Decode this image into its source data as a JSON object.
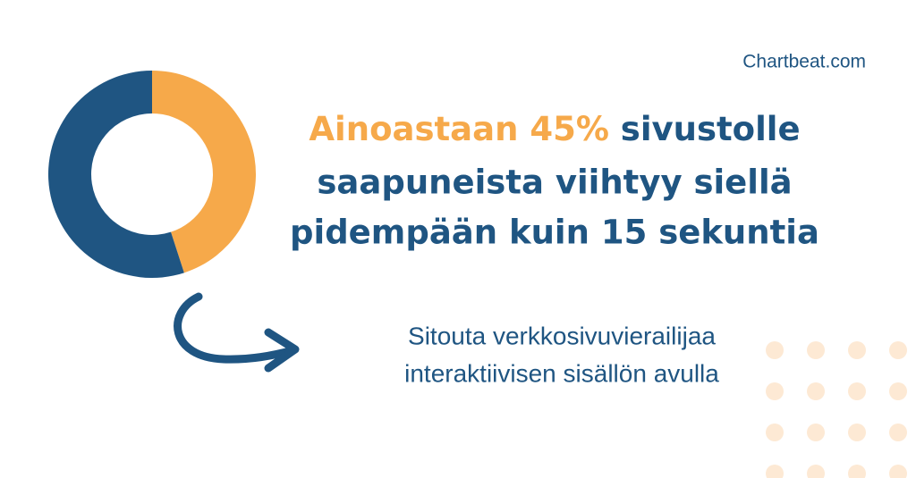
{
  "brand": "Chartbeat.com",
  "headline": {
    "highlight": "Ainoastaan 45%",
    "line1_rest": "sivustolle",
    "line2": "saapuneista viihtyy siellä",
    "line3": "pidempään kuin 15 sekuntia"
  },
  "subtext": [
    "Sitouta verkkosivuvierailijaa",
    "interaktiivisen sisällön avulla"
  ],
  "chart_data": {
    "type": "donut",
    "values": [
      45,
      55
    ],
    "colors": [
      "#f6a94a",
      "#1f5582"
    ]
  }
}
